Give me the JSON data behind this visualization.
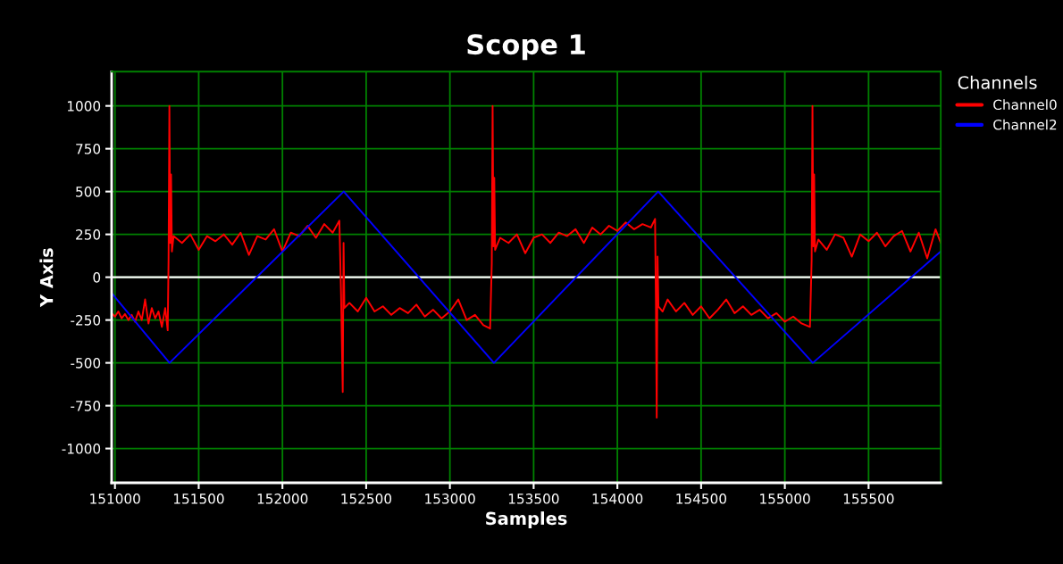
{
  "chart_data": {
    "type": "line",
    "title": "Scope 1",
    "xlabel": "Samples",
    "ylabel": "Y Axis",
    "legend_title": "Channels",
    "legend": "top right",
    "grid": true,
    "marker": "none",
    "line_style": "solid",
    "xlim": [
      150980,
      155931
    ],
    "ylim": [
      -1200,
      1200
    ],
    "xticks": [
      151000,
      151500,
      152000,
      152500,
      153000,
      153500,
      154000,
      154500,
      155000,
      155500
    ],
    "yticks": [
      -1000,
      -750,
      -500,
      -250,
      0,
      250,
      500,
      750,
      1000
    ],
    "ref_lines": [
      {
        "axis": "y",
        "value": 0,
        "color": "#ffffff"
      }
    ],
    "series": [
      {
        "name": "Channel0",
        "color": "#ff0000",
        "x": [
          150980,
          151000,
          151020,
          151040,
          151060,
          151080,
          151100,
          151120,
          151140,
          151160,
          151180,
          151200,
          151220,
          151240,
          151260,
          151280,
          151300,
          151315,
          151320,
          151325,
          151330,
          151335,
          151340,
          151350,
          151400,
          151450,
          151500,
          151550,
          151600,
          151650,
          151700,
          151750,
          151800,
          151850,
          151900,
          151950,
          152000,
          152050,
          152100,
          152150,
          152200,
          152250,
          152300,
          152340,
          152350,
          152360,
          152365,
          152370,
          152400,
          152450,
          152500,
          152550,
          152600,
          152650,
          152700,
          152750,
          152800,
          152850,
          152900,
          152950,
          153000,
          153050,
          153100,
          153150,
          153200,
          153240,
          153250,
          153255,
          153260,
          153265,
          153270,
          153300,
          153350,
          153400,
          153450,
          153500,
          153550,
          153600,
          153650,
          153700,
          153750,
          153800,
          153850,
          153900,
          153950,
          154000,
          154050,
          154100,
          154150,
          154200,
          154225,
          154230,
          154235,
          154240,
          154245,
          154270,
          154300,
          154350,
          154400,
          154450,
          154500,
          154550,
          154600,
          154650,
          154700,
          154750,
          154800,
          154850,
          154900,
          154950,
          155000,
          155050,
          155100,
          155150,
          155160,
          155165,
          155170,
          155175,
          155180,
          155200,
          155250,
          155300,
          155350,
          155400,
          155450,
          155500,
          155550,
          155600,
          155650,
          155700,
          155750,
          155800,
          155850,
          155900,
          155931
        ],
        "values": [
          -210,
          -230,
          -200,
          -240,
          -215,
          -250,
          -220,
          -260,
          -200,
          -250,
          -130,
          -270,
          -180,
          -240,
          -200,
          -290,
          -180,
          -310,
          100,
          1000,
          200,
          600,
          150,
          240,
          200,
          250,
          160,
          240,
          210,
          250,
          190,
          260,
          130,
          240,
          220,
          280,
          150,
          260,
          240,
          300,
          230,
          310,
          260,
          330,
          -100,
          -670,
          200,
          -180,
          -150,
          -200,
          -120,
          -200,
          -170,
          -220,
          -180,
          -210,
          -160,
          -230,
          -190,
          -240,
          -200,
          -130,
          -250,
          -220,
          -280,
          -300,
          80,
          1000,
          180,
          580,
          160,
          230,
          200,
          250,
          140,
          230,
          250,
          200,
          260,
          240,
          280,
          200,
          290,
          250,
          300,
          270,
          320,
          280,
          310,
          290,
          340,
          -140,
          -820,
          120,
          -170,
          -200,
          -130,
          -200,
          -150,
          -220,
          -170,
          -240,
          -190,
          -130,
          -210,
          -170,
          -220,
          -190,
          -240,
          -210,
          -260,
          -230,
          -270,
          -290,
          100,
          1000,
          180,
          600,
          150,
          220,
          160,
          250,
          230,
          120,
          250,
          210,
          260,
          180,
          240,
          270,
          150,
          260,
          110,
          280,
          200
        ]
      },
      {
        "name": "Channel2",
        "color": "#0000ff",
        "x": [
          150980,
          151326,
          152366,
          153263,
          154244,
          155167,
          155931
        ],
        "values": [
          -93,
          -500,
          500,
          -500,
          500,
          -500,
          150
        ]
      }
    ]
  }
}
